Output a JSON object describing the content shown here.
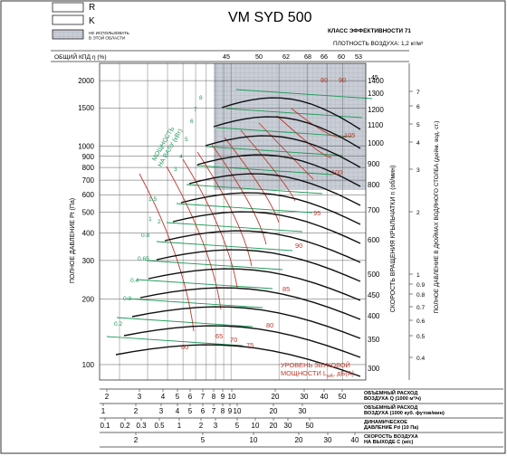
{
  "chart_data": {
    "type": "line",
    "title": "VM SYD 500",
    "efficiency_class": "КЛАСС ЭФФЕКТИВНОСТИ 71",
    "air_density": "ПЛОТНОСТЬ ВОЗДУХА: 1,2 кг/м³",
    "legend": {
      "r": "R",
      "k": "K",
      "not_used": "НЕ ИСПОЛЬЗОВАТЬ В ЭТОЙ ОБЛАСТИ"
    },
    "efficiency_label": "ОБЩИЙ КПД η (%)",
    "efficiency_values": [
      "45",
      "50",
      "62",
      "68",
      "66",
      "60",
      "53"
    ],
    "efficiency_top_right": "45",
    "ylabel": "ПОЛНОЕ ДАВЛЕНИЕ Pt (Па)",
    "y_ticks": [
      "2000",
      "1500",
      "1000",
      "900",
      "800",
      "700",
      "600",
      "500",
      "400",
      "300",
      "200",
      "100"
    ],
    "y_range": [
      85,
      2400
    ],
    "speed_axis_label": "СКОРОСТЬ ВРАЩЕНИЯ КРЫЛЬЧАТКИ  n (об/мин)",
    "speed_ticks": [
      "1400",
      "1300",
      "1200",
      "1100",
      "1000",
      "900",
      "800",
      "700",
      "600",
      "500",
      "450",
      "400",
      "350",
      "300"
    ],
    "inch_axis_label": "ПОЛНОЕ ДАВЛЕНИЕ В ДЮЙМАХ ВОДЯНОГО СТОЛБА (дюйм. вод. ст.)",
    "inch_ticks": [
      "7",
      "6",
      "5",
      "4",
      "3",
      "2",
      "1",
      "0.9",
      "0.8",
      "0.7",
      "0.6",
      "0.5",
      "0.4"
    ],
    "power_label_1": "МОЩНОСТЬ",
    "power_label_2": "НА ВАЛУ (кВт)",
    "power_values": [
      "8",
      "7",
      "6",
      "5",
      "4",
      "3",
      "2",
      "1.5",
      "1",
      "0.8",
      "0.65",
      "0.4",
      "0.3",
      "0.2"
    ],
    "noise_label_1": "УРОВЕНЬ ЗВУКОВОЙ",
    "noise_label_2": "МОЩНОСТИ L",
    "noise_label_3": "wA",
    "noise_label_4": ", дБ(A)",
    "noise_values": [
      "105",
      "100",
      "95",
      "90",
      "85",
      "80",
      "75",
      "70",
      "65",
      "60"
    ],
    "noise_value_80_top": "80",
    "noise_value_90_top": "90",
    "x_axes": [
      {
        "label_1": "ОБЪЕМНЫЙ РАСХОД",
        "label_2": "ВОЗДУХА Q (1000 м³/ч)",
        "ticks": [
          "2",
          "3",
          "4",
          "5",
          "6",
          "7",
          "8",
          "9",
          "10",
          "20",
          "30",
          "40",
          "50"
        ]
      },
      {
        "label_1": "ОБЪЕМНЫЙ РАСХОД",
        "label_2": "ВОЗДУХА (1000 куб. футов/мин)",
        "ticks": [
          "1",
          "2",
          "3",
          "4",
          "5",
          "6",
          "7",
          "8",
          "9",
          "10",
          "20",
          "30"
        ]
      },
      {
        "label_1": "ДИНАМИЧЕСКОЕ",
        "label_2": "ДАВЛЕНИЕ Pd (10 Па)",
        "ticks": [
          "0.1",
          "0.2",
          "0.3",
          "0.5",
          "1",
          "2",
          "3",
          "5",
          "10",
          "20",
          "30",
          "50"
        ]
      },
      {
        "label_1": "СКОРОСТЬ ВОЗДУХА",
        "label_2": "НА ВЫХОДЕ С (м/с)",
        "ticks": [
          "2",
          "5",
          "10",
          "20",
          "30",
          "40"
        ]
      }
    ],
    "colors": {
      "speed_curves": "#111111",
      "power_lines": "#1f9a5a",
      "noise_lines": "#c0392b",
      "not_used_zone": "#c8cdd6",
      "grid": "#555555"
    }
  }
}
